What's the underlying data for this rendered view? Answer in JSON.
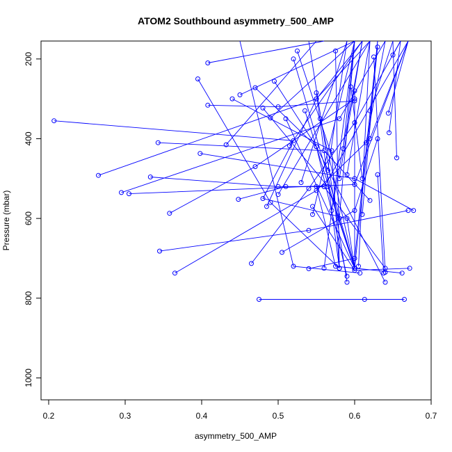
{
  "chart_data": {
    "type": "line",
    "title": "ATOM2 Southbound asymmetry_500_AMP",
    "xlabel": "asymmetry_500_AMP",
    "ylabel": "Pressure (mbar)",
    "xlim": [
      0.19,
      0.7
    ],
    "ylim": [
      1055,
      155
    ],
    "y_reversed": true,
    "x_ticks": [
      0.2,
      0.3,
      0.4,
      0.5,
      0.6,
      0.7
    ],
    "x_tick_labels": [
      "0.2",
      "0.3",
      "0.4",
      "0.5",
      "0.6",
      "0.7"
    ],
    "y_ticks": [
      200,
      400,
      600,
      800,
      1000
    ],
    "y_tick_labels": [
      "200",
      "400",
      "600",
      "800",
      "1000"
    ],
    "grid": false,
    "legend": "none",
    "color": "#0000ff",
    "series": [
      {
        "values": [
          [
            0.475,
            803
          ],
          [
            0.613,
            803
          ],
          [
            0.665,
            803
          ]
        ]
      },
      {
        "values": [
          [
            0.207,
            355
          ],
          [
            0.52,
            405
          ],
          [
            0.48,
            550
          ],
          [
            0.59,
            600
          ],
          [
            0.6,
            725
          ]
        ]
      },
      {
        "values": [
          [
            0.265,
            492
          ],
          [
            0.55,
            300
          ],
          [
            0.61,
            155
          ]
        ]
      },
      {
        "values": [
          [
            0.295,
            535
          ],
          [
            0.58,
            350
          ],
          [
            0.64,
            155
          ]
        ]
      },
      {
        "values": [
          [
            0.305,
            538
          ],
          [
            0.6,
            515
          ],
          [
            0.67,
            155
          ]
        ]
      },
      {
        "values": [
          [
            0.333,
            496
          ],
          [
            0.5,
            520
          ],
          [
            0.56,
            520
          ],
          [
            0.64,
            725
          ]
        ]
      },
      {
        "values": [
          [
            0.343,
            410
          ],
          [
            0.56,
            430
          ],
          [
            0.62,
            555
          ]
        ]
      },
      {
        "values": [
          [
            0.345,
            682
          ],
          [
            0.54,
            630
          ],
          [
            0.67,
            580
          ]
        ]
      },
      {
        "values": [
          [
            0.358,
            587
          ],
          [
            0.47,
            470
          ],
          [
            0.6,
            300
          ]
        ]
      },
      {
        "values": [
          [
            0.365,
            737
          ],
          [
            0.55,
            530
          ],
          [
            0.62,
            400
          ],
          [
            0.67,
            155
          ]
        ]
      },
      {
        "values": [
          [
            0.395,
            250
          ],
          [
            0.49,
            560
          ],
          [
            0.58,
            725
          ]
        ]
      },
      {
        "values": [
          [
            0.398,
            437
          ],
          [
            0.6,
            500
          ],
          [
            0.677,
            580
          ]
        ]
      },
      {
        "values": [
          [
            0.408,
            210
          ],
          [
            0.56,
            155
          ]
        ]
      },
      {
        "values": [
          [
            0.408,
            316
          ],
          [
            0.5,
            320
          ],
          [
            0.6,
            305
          ]
        ]
      },
      {
        "values": [
          [
            0.432,
            415
          ],
          [
            0.55,
            155
          ]
        ]
      },
      {
        "values": [
          [
            0.44,
            300
          ],
          [
            0.57,
            430
          ],
          [
            0.58,
            725
          ]
        ]
      },
      {
        "values": [
          [
            0.448,
            552
          ],
          [
            0.51,
            520
          ],
          [
            0.56,
            520
          ],
          [
            0.67,
            155
          ]
        ]
      },
      {
        "values": [
          [
            0.45,
            290
          ],
          [
            0.6,
            155
          ]
        ]
      },
      {
        "values": [
          [
            0.465,
            713
          ],
          [
            0.54,
            525
          ],
          [
            0.6,
            360
          ],
          [
            0.66,
            155
          ]
        ]
      },
      {
        "values": [
          [
            0.47,
            272
          ],
          [
            0.55,
            420
          ],
          [
            0.64,
            760
          ]
        ]
      },
      {
        "values": [
          [
            0.48,
            323
          ],
          [
            0.565,
            520
          ],
          [
            0.6,
            725
          ]
        ]
      },
      {
        "values": [
          [
            0.485,
            570
          ],
          [
            0.55,
            300
          ],
          [
            0.62,
            155
          ]
        ]
      },
      {
        "values": [
          [
            0.49,
            348
          ],
          [
            0.6,
            155
          ]
        ]
      },
      {
        "values": [
          [
            0.495,
            256
          ],
          [
            0.55,
            420
          ],
          [
            0.59,
            745
          ]
        ]
      },
      {
        "values": [
          [
            0.5,
            540
          ],
          [
            0.62,
            155
          ]
        ]
      },
      {
        "values": [
          [
            0.505,
            685
          ],
          [
            0.6,
            580
          ],
          [
            0.63,
            400
          ]
        ]
      },
      {
        "values": [
          [
            0.51,
            350
          ],
          [
            0.6,
            725
          ]
        ]
      },
      {
        "values": [
          [
            0.515,
            418
          ],
          [
            0.61,
            155
          ]
        ]
      },
      {
        "values": [
          [
            0.52,
            200
          ],
          [
            0.6,
            725
          ]
        ]
      },
      {
        "values": [
          [
            0.525,
            180
          ],
          [
            0.58,
            500
          ],
          [
            0.61,
            155
          ]
        ]
      },
      {
        "values": [
          [
            0.53,
            510
          ],
          [
            0.59,
            155
          ]
        ]
      },
      {
        "values": [
          [
            0.535,
            330
          ],
          [
            0.6,
            725
          ]
        ]
      },
      {
        "values": [
          [
            0.54,
            155
          ],
          [
            0.59,
            760
          ]
        ]
      },
      {
        "values": [
          [
            0.545,
            590
          ],
          [
            0.6,
            155
          ]
        ]
      },
      {
        "values": [
          [
            0.55,
            285
          ],
          [
            0.58,
            725
          ]
        ]
      },
      {
        "values": [
          [
            0.555,
            350
          ],
          [
            0.6,
            725
          ]
        ]
      },
      {
        "values": [
          [
            0.56,
            725
          ],
          [
            0.6,
            155
          ]
        ]
      },
      {
        "values": [
          [
            0.565,
            480
          ],
          [
            0.59,
            155
          ]
        ]
      },
      {
        "values": [
          [
            0.57,
            580
          ],
          [
            0.61,
            155
          ]
        ]
      },
      {
        "values": [
          [
            0.575,
            180
          ],
          [
            0.58,
            725
          ]
        ]
      },
      {
        "values": [
          [
            0.58,
            600
          ],
          [
            0.6,
            155
          ]
        ]
      },
      {
        "values": [
          [
            0.585,
            425
          ],
          [
            0.6,
            155
          ]
        ]
      },
      {
        "values": [
          [
            0.59,
            490
          ],
          [
            0.62,
            155
          ]
        ]
      },
      {
        "values": [
          [
            0.595,
            270
          ],
          [
            0.61,
            500
          ]
        ]
      },
      {
        "values": [
          [
            0.6,
            280
          ],
          [
            0.6,
            725
          ]
        ]
      },
      {
        "values": [
          [
            0.605,
            720
          ],
          [
            0.62,
            155
          ]
        ]
      },
      {
        "values": [
          [
            0.61,
            590
          ],
          [
            0.63,
            155
          ]
        ]
      },
      {
        "values": [
          [
            0.615,
            410
          ],
          [
            0.64,
            155
          ]
        ]
      },
      {
        "values": [
          [
            0.62,
            330
          ],
          [
            0.65,
            155
          ]
        ]
      },
      {
        "values": [
          [
            0.625,
            195
          ],
          [
            0.64,
            735
          ]
        ]
      },
      {
        "values": [
          [
            0.63,
            170
          ],
          [
            0.6,
            725
          ]
        ]
      },
      {
        "values": [
          [
            0.638,
            737
          ],
          [
            0.63,
            490
          ]
        ]
      },
      {
        "values": [
          [
            0.645,
            385
          ],
          [
            0.66,
            155
          ]
        ]
      },
      {
        "values": [
          [
            0.644,
            336
          ],
          [
            0.67,
            155
          ]
        ]
      },
      {
        "values": [
          [
            0.65,
            190
          ],
          [
            0.66,
            155
          ]
        ]
      },
      {
        "values": [
          [
            0.655,
            448
          ],
          [
            0.65,
            155
          ]
        ]
      },
      {
        "values": [
          [
            0.662,
            737
          ],
          [
            0.575,
            720
          ],
          [
            0.55,
            520
          ]
        ]
      },
      {
        "values": [
          [
            0.672,
            725
          ],
          [
            0.6,
            730
          ],
          [
            0.545,
            570
          ]
        ]
      },
      {
        "values": [
          [
            0.54,
            726
          ],
          [
            0.6,
            700
          ],
          [
            0.63,
            155
          ]
        ]
      },
      {
        "values": [
          [
            0.607,
            737
          ],
          [
            0.52,
            720
          ],
          [
            0.45,
            155
          ]
        ]
      }
    ]
  }
}
